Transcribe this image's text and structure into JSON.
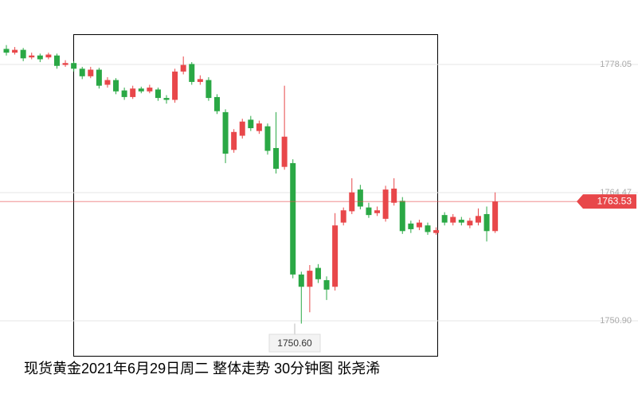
{
  "chart_data": {
    "type": "candlestick",
    "title": "现货黄金2021年6月29日周二 整体走势  30分钟图  张尧浠",
    "open": [
      1779.7,
      1779.3,
      1779.6,
      1778.8,
      1779.0,
      1778.8,
      1779.0,
      1778.0,
      1778.2,
      1777.6,
      1776.8,
      1777.5,
      1775.9,
      1776.4,
      1775.3,
      1774.6,
      1775.5,
      1775.2,
      1775.4,
      1774.5,
      1774.3,
      1777.3,
      1778.1,
      1776.2,
      1776.4,
      1774.6,
      1773.0,
      1769.0,
      1770.5,
      1772.2,
      1771.0,
      1771.5,
      1769.2,
      1767.2,
      1767.6,
      1755.8,
      1754.5,
      1756.5,
      1755.2,
      1754.5,
      1761.3,
      1762.5,
      1764.8,
      1762.9,
      1762.3,
      1761.7,
      1763.4,
      1763.6,
      1761.2,
      1760.8,
      1761.0,
      1760.2,
      1762.1,
      1761.3,
      1761.6,
      1761.0,
      1761.3,
      1762.2,
      1760.4
    ],
    "close": [
      1779.3,
      1779.6,
      1778.7,
      1779.0,
      1778.6,
      1779.1,
      1777.9,
      1778.2,
      1777.6,
      1776.8,
      1777.5,
      1775.8,
      1776.4,
      1775.2,
      1774.6,
      1775.5,
      1775.2,
      1775.6,
      1774.5,
      1774.3,
      1777.3,
      1778.0,
      1776.2,
      1776.5,
      1774.5,
      1773.1,
      1768.6,
      1770.9,
      1772.0,
      1771.3,
      1771.8,
      1768.9,
      1767.0,
      1770.4,
      1755.8,
      1754.5,
      1756.2,
      1755.3,
      1754.2,
      1761.0,
      1762.6,
      1764.5,
      1763.0,
      1762.1,
      1762.6,
      1764.8,
      1764.9,
      1760.4,
      1760.6,
      1761.3,
      1760.3,
      1760.5,
      1761.3,
      1761.9,
      1761.3,
      1761.5,
      1762.0,
      1760.4,
      1763.53
    ],
    "high": [
      1780.1,
      1779.9,
      1779.8,
      1779.3,
      1779.2,
      1779.3,
      1779.2,
      1778.5,
      1778.4,
      1777.8,
      1777.8,
      1777.7,
      1776.7,
      1776.6,
      1775.6,
      1775.8,
      1775.7,
      1775.9,
      1775.6,
      1774.8,
      1777.6,
      1778.9,
      1778.3,
      1776.9,
      1776.7,
      1774.9,
      1773.3,
      1771.2,
      1772.3,
      1772.6,
      1772.1,
      1771.8,
      1773.0,
      1775.8,
      1768.0,
      1756.1,
      1756.8,
      1756.9,
      1755.6,
      1762.3,
      1762.9,
      1766.0,
      1765.3,
      1763.4,
      1763.0,
      1765.2,
      1766.0,
      1764.0,
      1761.5,
      1761.6,
      1761.3,
      1760.8,
      1762.4,
      1762.2,
      1761.9,
      1761.8,
      1762.8,
      1763.0,
      1764.5
    ],
    "low": [
      1779.0,
      1779.1,
      1778.4,
      1778.6,
      1778.3,
      1778.6,
      1777.6,
      1777.8,
      1777.3,
      1776.5,
      1776.6,
      1775.5,
      1775.6,
      1774.9,
      1774.3,
      1774.4,
      1775.0,
      1775.0,
      1774.2,
      1773.9,
      1774.0,
      1777.0,
      1775.9,
      1775.9,
      1774.2,
      1772.8,
      1767.6,
      1768.7,
      1770.2,
      1771.0,
      1770.7,
      1768.5,
      1766.5,
      1766.9,
      1755.4,
      1750.6,
      1751.8,
      1754.9,
      1753.1,
      1754.1,
      1761.0,
      1762.2,
      1762.7,
      1761.8,
      1762.0,
      1761.4,
      1763.1,
      1760.1,
      1760.2,
      1760.5,
      1760.0,
      1760.0,
      1761.0,
      1761.0,
      1761.0,
      1760.7,
      1761.0,
      1759.3,
      1760.2
    ],
    "up_color": "#e8474a",
    "down_color": "#2aa845",
    "ylim": [
      1746.09,
      1784.88
    ],
    "yticks": [
      {
        "value": 1750.9,
        "label": "1750.90"
      },
      1764.47,
      {
        "value": 1778.05,
        "label": "1778.05"
      }
    ],
    "grid": true,
    "last_value": 1763.53,
    "annotations": [
      {
        "value": 1750.6,
        "label": "1750.60"
      }
    ]
  }
}
